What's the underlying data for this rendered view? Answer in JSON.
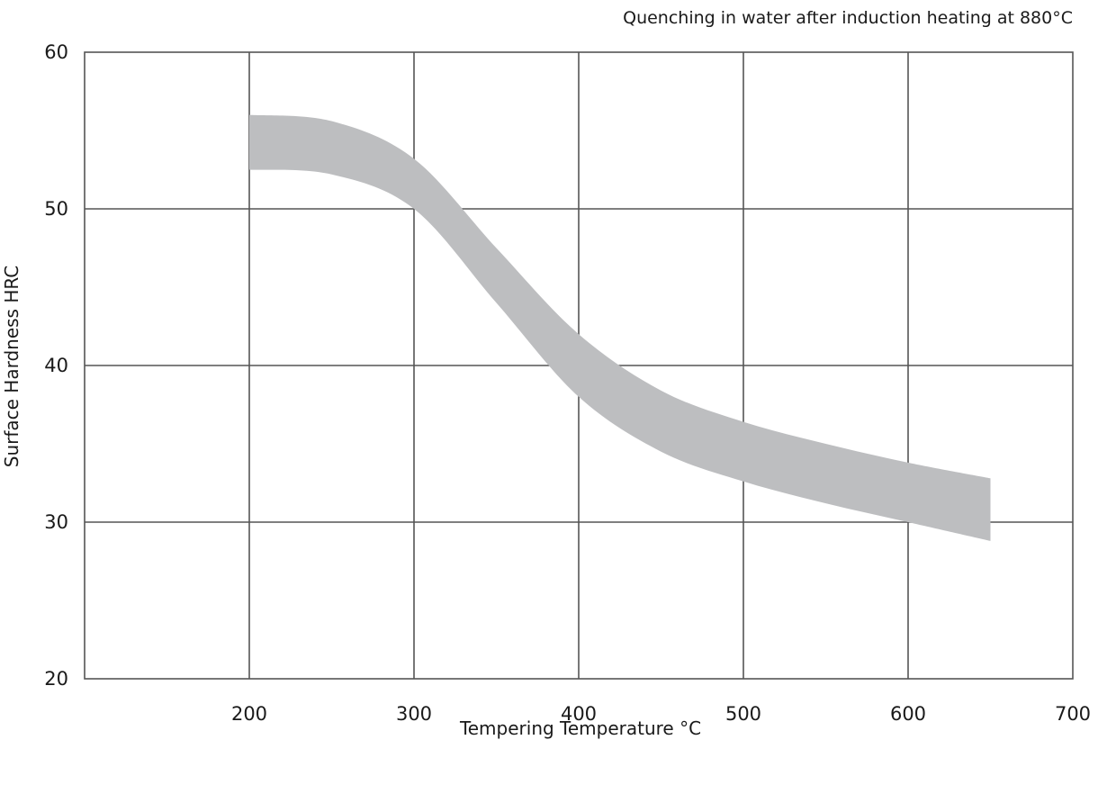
{
  "chart_data": {
    "type": "area",
    "title": "Quenching in water after induction heating at 880°C",
    "xlabel": "Tempering Temperature °C",
    "ylabel": "Surface Hardness HRC",
    "xlim": [
      100,
      700
    ],
    "ylim": [
      20,
      60
    ],
    "x_ticks": [
      200,
      300,
      400,
      500,
      600,
      700
    ],
    "x_tick_labels": [
      "200",
      "300",
      "400",
      "500",
      "600",
      "700"
    ],
    "y_ticks": [
      20,
      30,
      40,
      50,
      60
    ],
    "y_tick_labels": [
      "20",
      "30",
      "40",
      "50",
      "60"
    ],
    "grid": true,
    "band_color": "#bdbec0",
    "series": [
      {
        "kind": "band-upper",
        "x": [
          200,
          250,
          300,
          350,
          400,
          450,
          500,
          550,
          600,
          650
        ],
        "y": [
          56,
          55.6,
          53.2,
          47.5,
          42,
          38.4,
          36.4,
          35,
          33.8,
          32.8
        ]
      },
      {
        "kind": "band-lower",
        "x": [
          200,
          250,
          300,
          350,
          400,
          450,
          500,
          550,
          600,
          650
        ],
        "y": [
          52.5,
          52.2,
          50,
          44,
          38,
          34.5,
          32.6,
          31.2,
          30,
          28.8
        ]
      }
    ]
  }
}
